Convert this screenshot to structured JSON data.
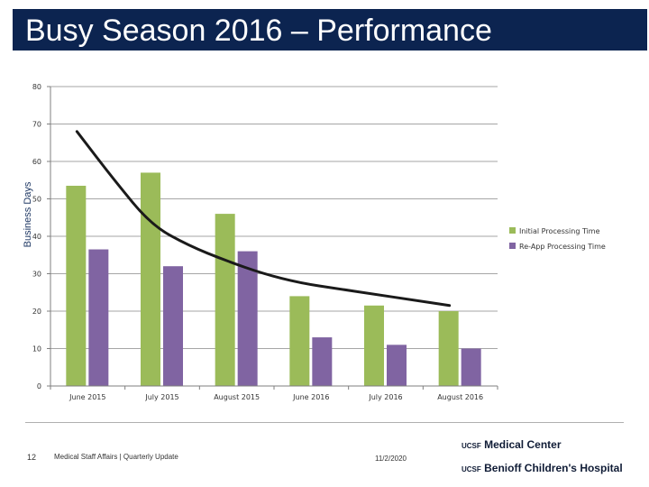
{
  "slide": {
    "title": "Busy Season 2016 – Performance"
  },
  "chart_data": {
    "type": "bar",
    "title": "",
    "xlabel": "",
    "ylabel": "Business Days",
    "ylim": [
      0,
      80
    ],
    "yticks": [
      0,
      10,
      20,
      30,
      40,
      50,
      60,
      70,
      80
    ],
    "grid": true,
    "legend_position": "right",
    "categories": [
      "June 2015",
      "July 2015",
      "August 2015",
      "June 2016",
      "July 2016",
      "August 2016"
    ],
    "series": [
      {
        "name": "Initial Processing Time",
        "color": "#9bbb59",
        "values": [
          53.5,
          57,
          46,
          24,
          21.5,
          20
        ]
      },
      {
        "name": "Re-App Processing Time",
        "color": "#8064a2",
        "values": [
          36.5,
          32,
          36,
          13,
          11,
          10
        ]
      }
    ],
    "trendline": {
      "color": "#1a1a1a",
      "x": [
        0,
        0.5,
        1,
        1.5,
        2,
        2.5,
        3,
        3.5,
        4,
        4.5,
        5
      ],
      "values": [
        68,
        55,
        43,
        37.5,
        33.5,
        30,
        27.5,
        26,
        24.5,
        23,
        21.5
      ]
    }
  },
  "footer": {
    "page_number": "12",
    "text": "Medical Staff Affairs | Quarterly Update",
    "date": "11/2/2020",
    "logo_line_1_prefix": "UCSF",
    "logo_line_1": "Medical Center",
    "logo_line_2_prefix": "UCSF",
    "logo_line_2": "Benioff Children's Hospital"
  }
}
